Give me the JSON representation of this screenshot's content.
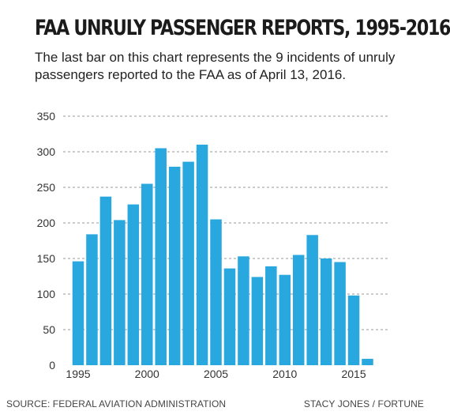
{
  "header": {
    "title": "FAA UNRULY PASSENGER REPORTS, 1995-2016",
    "subtitle": "The last bar on this chart represents the 9 incidents of unruly passengers reported to the FAA as of April 13, 2016."
  },
  "footer": {
    "source": "SOURCE: FEDERAL AVIATION ADMINISTRATION",
    "credit": "STACY JONES / FORTUNE"
  },
  "colors": {
    "bar": "#29a8e0",
    "grid": "#999999",
    "axis_text": "#333333"
  },
  "chart_data": {
    "type": "bar",
    "title": "FAA UNRULY PASSENGER REPORTS, 1995-2016",
    "xlabel": "",
    "ylabel": "",
    "x": [
      1995,
      1996,
      1997,
      1998,
      1999,
      2000,
      2001,
      2002,
      2003,
      2004,
      2005,
      2006,
      2007,
      2008,
      2009,
      2010,
      2011,
      2012,
      2013,
      2014,
      2015,
      2016
    ],
    "values": [
      146,
      184,
      237,
      204,
      226,
      255,
      305,
      279,
      286,
      310,
      205,
      136,
      153,
      124,
      139,
      127,
      155,
      183,
      150,
      145,
      98,
      9
    ],
    "xticks": [
      "1995",
      "2000",
      "2005",
      "2010",
      "2015"
    ],
    "yticks": [
      "0",
      "50",
      "100",
      "150",
      "200",
      "250",
      "300",
      "350"
    ],
    "ylim": [
      0,
      350
    ],
    "grid": "horizontal dashed"
  }
}
